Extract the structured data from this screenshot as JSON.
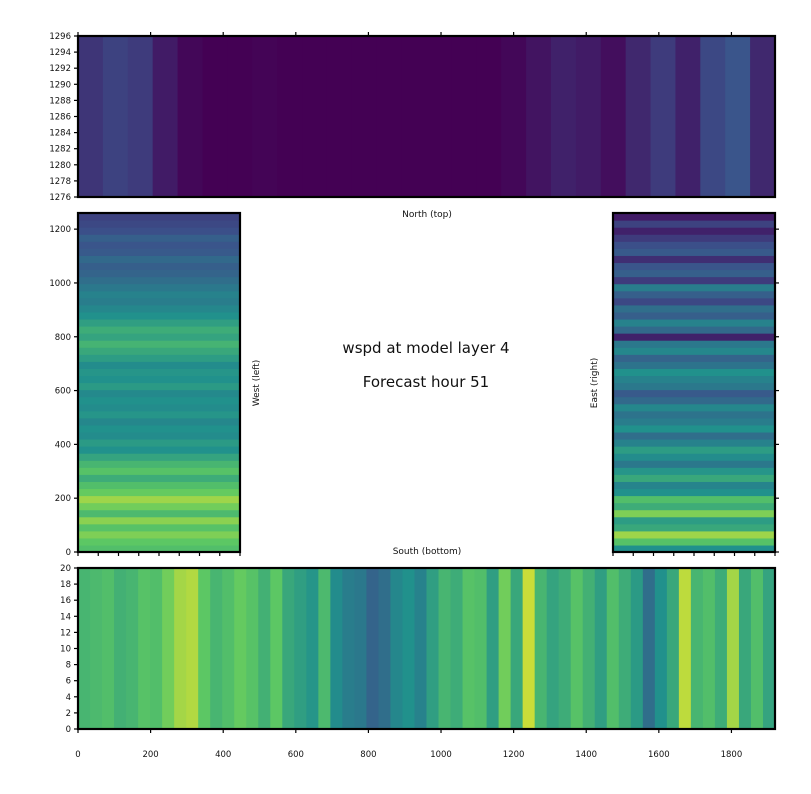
{
  "title": {
    "line1": "wspd at model layer 4",
    "line2": "Forecast hour 51"
  },
  "colormap": [
    "#440154",
    "#3b528b",
    "#21918c",
    "#5ec962",
    "#fde725"
  ],
  "chart_data": [
    {
      "id": "north",
      "type": "heatmap",
      "xlabel": "North (top)",
      "ylabel": "",
      "xlim": [
        0,
        1920
      ],
      "ylim": [
        1276,
        1296
      ],
      "x_ticks": [
        0,
        200,
        400,
        600,
        800,
        1000,
        1200,
        1400,
        1600,
        1800
      ],
      "x_tick_labels": [],
      "y_ticks": [
        1276,
        1278,
        1280,
        1282,
        1284,
        1286,
        1288,
        1290,
        1292,
        1294,
        1296
      ],
      "y_tick_labels": [
        "1276",
        "1278",
        "1280",
        "1282",
        "1284",
        "1286",
        "1288",
        "1290",
        "1292",
        "1294",
        "1296"
      ],
      "value_profile_x": [
        0.16,
        0.2,
        0.18,
        0.08,
        0.02,
        0.0,
        0.0,
        0.01,
        0.0,
        0.0,
        0.0,
        0.0,
        0.0,
        0.0,
        0.0,
        0.0,
        0.0,
        0.02,
        0.06,
        0.1,
        0.08,
        0.04,
        0.12,
        0.18,
        0.1,
        0.22,
        0.26,
        0.12
      ]
    },
    {
      "id": "west",
      "type": "heatmap",
      "xlabel": "",
      "ylabel": "West (left)",
      "xlim": [
        1276,
        1296
      ],
      "ylim": [
        0,
        1260
      ],
      "y_ticks": [
        0,
        200,
        400,
        600,
        800,
        1000,
        1200
      ],
      "y_tick_labels": [
        "0",
        "200",
        "400",
        "600",
        "800",
        "1000",
        "1200"
      ],
      "value_profile_y": [
        0.7,
        0.74,
        0.8,
        0.72,
        0.82,
        0.68,
        0.78,
        0.85,
        0.76,
        0.7,
        0.62,
        0.72,
        0.66,
        0.58,
        0.5,
        0.54,
        0.48,
        0.5,
        0.46,
        0.52,
        0.48,
        0.5,
        0.47,
        0.54,
        0.5,
        0.52,
        0.48,
        0.55,
        0.6,
        0.65,
        0.58,
        0.62,
        0.56,
        0.5,
        0.46,
        0.42,
        0.44,
        0.4,
        0.36,
        0.32,
        0.3,
        0.34,
        0.28,
        0.26,
        0.3,
        0.24,
        0.22,
        0.2
      ]
    },
    {
      "id": "east",
      "type": "heatmap",
      "xlabel": "",
      "ylabel": "East (right)",
      "xlim": [
        1276,
        1296
      ],
      "ylim": [
        0,
        1260
      ],
      "y_ticks": [
        0,
        200,
        400,
        600,
        800,
        1000,
        1200
      ],
      "y_tick_labels": [],
      "value_profile_y": [
        0.5,
        0.72,
        0.85,
        0.6,
        0.55,
        0.8,
        0.62,
        0.7,
        0.5,
        0.45,
        0.6,
        0.52,
        0.4,
        0.48,
        0.55,
        0.44,
        0.36,
        0.5,
        0.42,
        0.38,
        0.46,
        0.34,
        0.28,
        0.4,
        0.44,
        0.5,
        0.38,
        0.32,
        0.46,
        0.4,
        0.1,
        0.34,
        0.44,
        0.3,
        0.36,
        0.22,
        0.3,
        0.42,
        0.18,
        0.3,
        0.26,
        0.14,
        0.28,
        0.24,
        0.18,
        0.1,
        0.2,
        0.08
      ]
    },
    {
      "id": "south",
      "type": "heatmap",
      "xlabel": "South (bottom)",
      "ylabel": "",
      "xlim": [
        0,
        1920
      ],
      "ylim": [
        0,
        20
      ],
      "x_ticks": [
        0,
        200,
        400,
        600,
        800,
        1000,
        1200,
        1400,
        1600,
        1800
      ],
      "x_tick_labels": [
        "0",
        "200",
        "400",
        "600",
        "800",
        "1000",
        "1200",
        "1400",
        "1600",
        "1800"
      ],
      "y_ticks": [
        0,
        2,
        4,
        6,
        8,
        10,
        12,
        14,
        16,
        18,
        20
      ],
      "y_tick_labels": [
        "0",
        "2",
        "4",
        "6",
        "8",
        "10",
        "12",
        "14",
        "16",
        "18",
        "20"
      ],
      "value_profile_x": [
        0.66,
        0.68,
        0.7,
        0.64,
        0.66,
        0.72,
        0.7,
        0.78,
        0.86,
        0.88,
        0.74,
        0.66,
        0.7,
        0.76,
        0.72,
        0.64,
        0.74,
        0.6,
        0.56,
        0.52,
        0.68,
        0.48,
        0.42,
        0.4,
        0.32,
        0.36,
        0.46,
        0.5,
        0.44,
        0.56,
        0.66,
        0.62,
        0.72,
        0.7,
        0.56,
        0.78,
        0.6,
        0.92,
        0.66,
        0.58,
        0.62,
        0.72,
        0.64,
        0.56,
        0.7,
        0.62,
        0.54,
        0.36,
        0.5,
        0.6,
        0.9,
        0.66,
        0.7,
        0.62,
        0.86,
        0.6,
        0.7,
        0.58
      ]
    }
  ]
}
